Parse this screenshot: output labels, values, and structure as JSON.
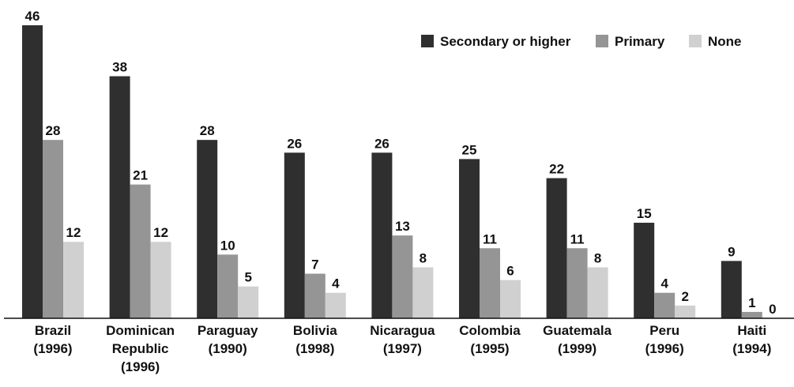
{
  "chart_data": {
    "type": "bar",
    "categories": [
      "Brazil\n(1996)",
      "Dominican\nRepublic\n(1996)",
      "Paraguay\n(1990)",
      "Bolivia\n(1998)",
      "Nicaragua\n(1997)",
      "Colombia\n(1995)",
      "Guatemala\n(1999)",
      "Peru\n(1996)",
      "Haiti\n(1994)"
    ],
    "series": [
      {
        "name": "Secondary or higher",
        "color": "#2f2f2f",
        "values": [
          46,
          38,
          28,
          26,
          26,
          25,
          22,
          15,
          9
        ]
      },
      {
        "name": "Primary",
        "color": "#959595",
        "values": [
          28,
          21,
          10,
          7,
          13,
          11,
          11,
          4,
          1
        ]
      },
      {
        "name": "None",
        "color": "#d0d0d0",
        "values": [
          12,
          12,
          5,
          4,
          8,
          6,
          8,
          2,
          0
        ]
      }
    ],
    "legend": "upper right"
  }
}
